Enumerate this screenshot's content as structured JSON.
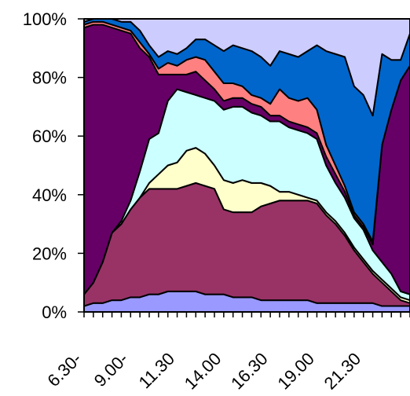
{
  "chart_data": {
    "type": "area",
    "stacked": true,
    "normalized": true,
    "title": "",
    "xlabel": "",
    "ylabel": "",
    "ylim": [
      0,
      100
    ],
    "yticks": [
      "0%",
      "20%",
      "40%",
      "60%",
      "80%",
      "100%"
    ],
    "x_tick_labels": [
      "6.30-",
      "9.00-",
      "11.30",
      "14.00",
      "16.30",
      "19.00",
      "21.30"
    ],
    "x_tick_label_index": [
      0,
      5,
      10,
      15,
      20,
      25,
      30
    ],
    "grid": false,
    "legend": "none",
    "x_count": 36,
    "series": [
      {
        "color": "#9999ff",
        "values": [
          2,
          3,
          3,
          4,
          4,
          5,
          5,
          6,
          6,
          7,
          7,
          7,
          7,
          6,
          6,
          6,
          5,
          5,
          5,
          4,
          4,
          4,
          4,
          4,
          4,
          3,
          3,
          3,
          3,
          3,
          3,
          3,
          2,
          2,
          2,
          2
        ]
      },
      {
        "color": "#993366",
        "values": [
          4,
          7,
          14,
          23,
          26,
          30,
          34,
          36,
          36,
          35,
          35,
          36,
          37,
          37,
          36,
          29,
          29,
          29,
          29,
          32,
          33,
          34,
          34,
          34,
          34,
          34,
          30,
          27,
          23,
          18,
          14,
          10,
          8,
          5,
          2,
          1
        ]
      },
      {
        "color": "#ffffcc",
        "values": [
          0,
          0,
          0,
          0,
          0,
          0,
          0,
          2,
          5,
          8,
          9,
          12,
          12,
          11,
          8,
          10,
          10,
          11,
          10,
          8,
          6,
          3,
          3,
          2,
          1,
          1,
          1,
          1,
          1,
          1,
          1,
          1,
          1,
          1,
          1,
          1
        ]
      },
      {
        "color": "#ccffff",
        "values": [
          0,
          0,
          0,
          0,
          1,
          3,
          9,
          15,
          14,
          22,
          25,
          20,
          18,
          19,
          22,
          24,
          26,
          25,
          24,
          23,
          22,
          24,
          22,
          22,
          22,
          21,
          16,
          13,
          12,
          10,
          10,
          7,
          6,
          5,
          2,
          2
        ]
      },
      {
        "color": "#660066",
        "values": [
          91,
          88,
          81,
          70,
          65,
          57,
          42,
          28,
          20,
          9,
          5,
          6,
          8,
          6,
          4,
          3,
          3,
          3,
          3,
          3,
          2,
          2,
          2,
          2,
          2,
          2,
          3,
          3,
          2,
          1,
          1,
          2,
          40,
          56,
          72,
          78
        ]
      },
      {
        "color": "#ff8080",
        "values": [
          1,
          1,
          1,
          1,
          1,
          1,
          2,
          1,
          2,
          4,
          3,
          5,
          5,
          7,
          6,
          6,
          5,
          4,
          3,
          3,
          4,
          9,
          8,
          8,
          10,
          8,
          4,
          3,
          2,
          1,
          1,
          1,
          0,
          0,
          0,
          0
        ]
      },
      {
        "color": "#0066cc",
        "values": [
          1,
          1,
          1,
          2,
          2,
          3,
          4,
          3,
          4,
          4,
          4,
          4,
          6,
          7,
          9,
          11,
          13,
          13,
          15,
          14,
          13,
          13,
          15,
          15,
          16,
          22,
          32,
          38,
          44,
          43,
          44,
          43,
          31,
          17,
          7,
          11
        ]
      },
      {
        "color": "#ccccff",
        "values": [
          1,
          0,
          0,
          0,
          1,
          1,
          4,
          9,
          13,
          11,
          12,
          10,
          7,
          7,
          9,
          11,
          9,
          10,
          11,
          13,
          16,
          11,
          12,
          13,
          11,
          9,
          11,
          12,
          13,
          23,
          26,
          33,
          12,
          14,
          14,
          5
        ]
      }
    ]
  }
}
